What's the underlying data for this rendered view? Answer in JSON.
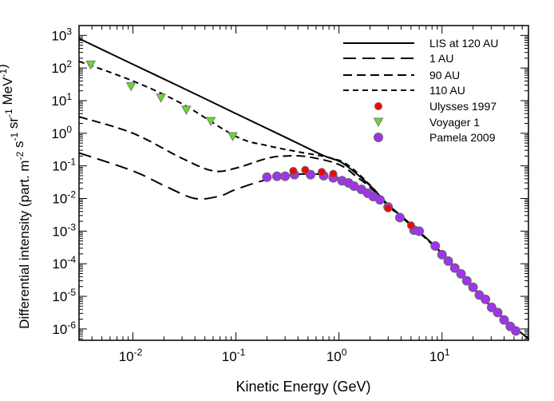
{
  "chart_data": {
    "type": "line",
    "xlabel": "Kinetic Energy (GeV)",
    "ylabel_parts": [
      {
        "t": "Differential intensity (part. m",
        "sup": false
      },
      {
        "t": "-2",
        "sup": true
      },
      {
        "t": " s",
        "sup": false
      },
      {
        "t": "-1",
        "sup": true
      },
      {
        "t": " sr",
        "sup": false
      },
      {
        "t": "-1",
        "sup": true
      },
      {
        "t": " MeV",
        "sup": false
      },
      {
        "t": "-1",
        "sup": true
      },
      {
        "t": ")",
        "sup": false
      }
    ],
    "x_scale": "log",
    "y_scale": "log",
    "xlim": [
      0.003,
      69
    ],
    "ylim": [
      4.5e-07,
      2000
    ],
    "x_ticks": [
      {
        "base": "10",
        "exp": "-2",
        "value": 0.01
      },
      {
        "base": "10",
        "exp": "-1",
        "value": 0.1
      },
      {
        "base": "10",
        "exp": "0",
        "value": 1
      },
      {
        "base": "10",
        "exp": "1",
        "value": 10
      }
    ],
    "y_ticks": [
      {
        "base": "10",
        "exp": "3",
        "value": 1000
      },
      {
        "base": "10",
        "exp": "2",
        "value": 100
      },
      {
        "base": "10",
        "exp": "1",
        "value": 10
      },
      {
        "base": "10",
        "exp": "0",
        "value": 1
      },
      {
        "base": "10",
        "exp": "-1",
        "value": 0.1
      },
      {
        "base": "10",
        "exp": "-2",
        "value": 0.01
      },
      {
        "base": "10",
        "exp": "-3",
        "value": 0.001
      },
      {
        "base": "10",
        "exp": "-4",
        "value": 0.0001
      },
      {
        "base": "10",
        "exp": "-5",
        "value": 1e-05
      },
      {
        "base": "10",
        "exp": "-6",
        "value": 1e-06
      }
    ],
    "grid": false,
    "legend_position": "top-right",
    "series": [
      {
        "name": "LIS at 120 AU",
        "kind": "line",
        "dash": "solid",
        "color": "#000000",
        "points": [
          [
            0.003,
            800
          ],
          [
            0.01,
            130
          ],
          [
            0.03,
            25
          ],
          [
            0.1,
            4.0
          ],
          [
            0.3,
            0.76
          ],
          [
            0.7,
            0.21
          ],
          [
            1.0,
            0.14
          ],
          [
            1.3,
            0.08
          ],
          [
            2,
            0.025
          ],
          [
            3,
            0.0065
          ],
          [
            5,
            0.0016
          ],
          [
            10,
            0.00021
          ],
          [
            30,
            4.8e-06
          ],
          [
            69,
            5e-07
          ]
        ]
      },
      {
        "name": "1 AU",
        "kind": "line",
        "dash": "long",
        "color": "#000000",
        "points": [
          [
            0.003,
            0.25
          ],
          [
            0.01,
            0.07
          ],
          [
            0.02,
            0.025
          ],
          [
            0.04,
            0.01
          ],
          [
            0.07,
            0.012
          ],
          [
            0.1,
            0.019
          ],
          [
            0.2,
            0.038
          ],
          [
            0.4,
            0.055
          ],
          [
            0.7,
            0.054
          ],
          [
            1,
            0.042
          ],
          [
            2,
            0.016
          ],
          [
            3,
            0.0058
          ],
          [
            5,
            0.0015
          ],
          [
            10,
            0.0002
          ],
          [
            30,
            4.8e-06
          ],
          [
            69,
            5e-07
          ]
        ]
      },
      {
        "name": "90 AU",
        "kind": "line",
        "dash": "medium",
        "color": "#000000",
        "points": [
          [
            0.003,
            3.2
          ],
          [
            0.01,
            1.0
          ],
          [
            0.03,
            0.17
          ],
          [
            0.06,
            0.07
          ],
          [
            0.1,
            0.085
          ],
          [
            0.2,
            0.17
          ],
          [
            0.3,
            0.2
          ],
          [
            0.5,
            0.19
          ],
          [
            1,
            0.11
          ],
          [
            1.5,
            0.045
          ],
          [
            2,
            0.022
          ],
          [
            3,
            0.006
          ],
          [
            5,
            0.0015
          ],
          [
            10,
            0.0002
          ],
          [
            30,
            4.8e-06
          ],
          [
            69,
            5e-07
          ]
        ]
      },
      {
        "name": "110 AU",
        "kind": "line",
        "dash": "short",
        "color": "#000000",
        "points": [
          [
            0.003,
            160
          ],
          [
            0.01,
            40
          ],
          [
            0.03,
            8
          ],
          [
            0.1,
            0.8
          ],
          [
            0.2,
            0.42
          ],
          [
            0.4,
            0.27
          ],
          [
            0.8,
            0.18
          ],
          [
            1.2,
            0.11
          ],
          [
            2,
            0.026
          ],
          [
            3,
            0.0063
          ],
          [
            5,
            0.0016
          ],
          [
            10,
            0.0002
          ],
          [
            30,
            4.8e-06
          ],
          [
            69,
            5e-07
          ]
        ]
      },
      {
        "name": "Ulysses 1997",
        "kind": "marker",
        "marker": "circle",
        "color": "#ff0000",
        "points": [
          [
            0.36,
            0.07
          ],
          [
            0.47,
            0.075
          ],
          [
            0.68,
            0.065
          ],
          [
            0.88,
            0.057
          ],
          [
            3.0,
            0.005
          ],
          [
            5.0,
            0.0015
          ]
        ]
      },
      {
        "name": "Voyager 1",
        "kind": "marker",
        "marker": "triangle-down",
        "color": "#66dd22",
        "points": [
          [
            0.0039,
            124
          ],
          [
            0.0096,
            27
          ],
          [
            0.0187,
            12
          ],
          [
            0.033,
            5.1
          ],
          [
            0.057,
            2.3
          ],
          [
            0.093,
            0.79
          ]
        ]
      },
      {
        "name": "Pamela 2009",
        "kind": "marker",
        "marker": "circle",
        "color": "#a033ee",
        "points": [
          [
            0.2,
            0.045
          ],
          [
            0.25,
            0.048
          ],
          [
            0.3,
            0.048
          ],
          [
            0.37,
            0.054
          ],
          [
            0.53,
            0.054
          ],
          [
            0.71,
            0.05
          ],
          [
            0.88,
            0.043
          ],
          [
            1.07,
            0.035
          ],
          [
            1.24,
            0.03
          ],
          [
            1.4,
            0.024
          ],
          [
            1.65,
            0.019
          ],
          [
            1.9,
            0.0145
          ],
          [
            2.15,
            0.0115
          ],
          [
            2.5,
            0.0091
          ],
          [
            3.0,
            0.0055
          ],
          [
            3.9,
            0.0026
          ],
          [
            5.35,
            0.00107
          ],
          [
            6.0,
            0.001
          ],
          [
            8.6,
            0.00035
          ],
          [
            10.0,
            0.00019
          ],
          [
            11.5,
            0.00012
          ],
          [
            13.3,
            7.4e-05
          ],
          [
            15.3,
            4.9e-05
          ],
          [
            17.4,
            3e-05
          ],
          [
            20,
            1.9e-05
          ],
          [
            23,
            1.1e-05
          ],
          [
            26.4,
            8.1e-06
          ],
          [
            30.3,
            4.6e-06
          ],
          [
            34.7,
            3.2e-06
          ],
          [
            40,
            1.9e-06
          ],
          [
            46,
            1.2e-06
          ],
          [
            52,
            8.7e-07
          ]
        ]
      }
    ]
  }
}
